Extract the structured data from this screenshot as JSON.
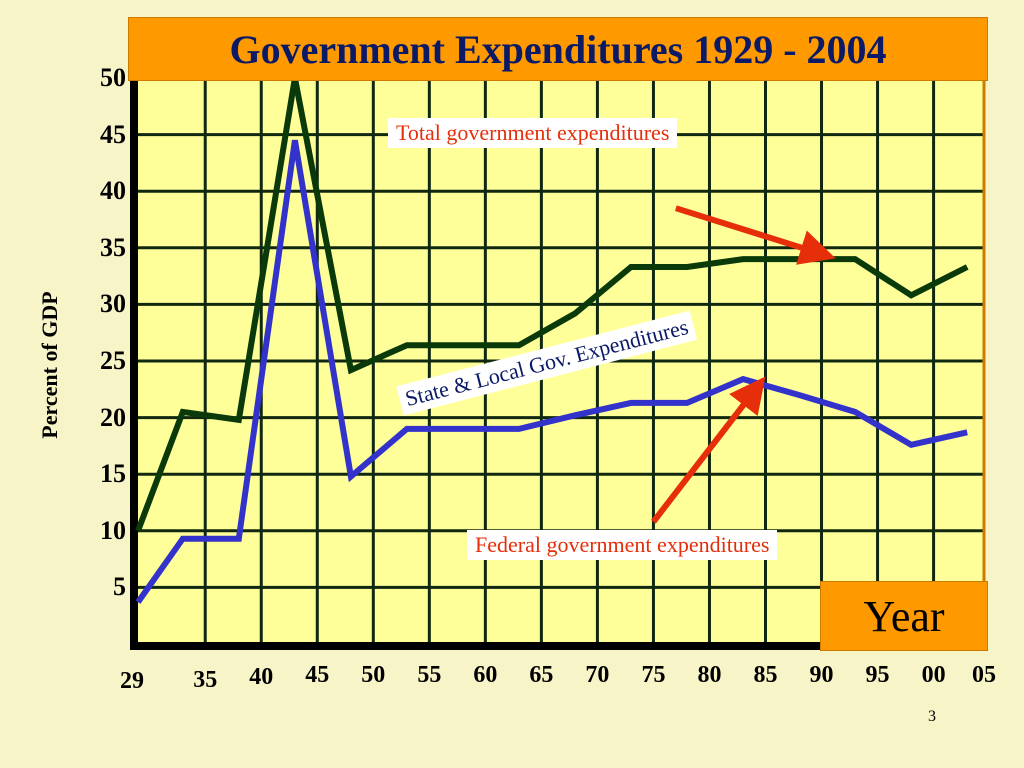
{
  "title": "Government Expenditures 1929 - 2004",
  "page_number": "3",
  "chart_data": {
    "type": "line",
    "title": "Government Expenditures 1929 - 2004",
    "xlabel": "Year",
    "ylabel": "Percent of GDP",
    "ylim": [
      0,
      50
    ],
    "grid": true,
    "y_ticks": [
      "5",
      "10",
      "15",
      "20",
      "25",
      "30",
      "35",
      "40",
      "45",
      "50"
    ],
    "x_ticks": [
      {
        "year": 1929,
        "label": "29"
      },
      {
        "year": 1935,
        "label": "35"
      },
      {
        "year": 1940,
        "label": "40"
      },
      {
        "year": 1945,
        "label": "45"
      },
      {
        "year": 1950,
        "label": "50"
      },
      {
        "year": 1955,
        "label": "55"
      },
      {
        "year": 1960,
        "label": "60"
      },
      {
        "year": 1965,
        "label": "65"
      },
      {
        "year": 1970,
        "label": "70"
      },
      {
        "year": 1975,
        "label": "75"
      },
      {
        "year": 1980,
        "label": "80"
      },
      {
        "year": 1985,
        "label": "85"
      },
      {
        "year": 1990,
        "label": "90"
      },
      {
        "year": 1995,
        "label": "95"
      },
      {
        "year": 2000,
        "label": "00"
      },
      {
        "year": 2005,
        "label": "05"
      }
    ],
    "series": [
      {
        "name": "Total government expenditures",
        "color": "#0a3a0a",
        "x": [
          1929,
          1933,
          1938,
          1943,
          1948,
          1953,
          1963,
          1968,
          1973,
          1978,
          1983,
          1988,
          1993,
          1998,
          2003
        ],
        "values": [
          10,
          20.5,
          19.8,
          50,
          24.2,
          26.4,
          26.4,
          29.2,
          33.3,
          33.3,
          34,
          34,
          34,
          30.8,
          33.3
        ]
      },
      {
        "name": "Federal  government expenditures",
        "color": "#3333cc",
        "x": [
          1929,
          1933,
          1938,
          1943,
          1948,
          1953,
          1963,
          1968,
          1973,
          1978,
          1983,
          1988,
          1993,
          1998,
          2003
        ],
        "values": [
          3.7,
          9.3,
          9.3,
          44.5,
          14.8,
          19,
          19,
          20.2,
          21.3,
          21.3,
          23.4,
          22,
          20.5,
          17.6,
          18.7
        ]
      }
    ],
    "annotations": {
      "total": "Total government expenditures",
      "federal": "Federal  government expenditures",
      "state_local": "State & Local Gov. Expenditures"
    },
    "annotation_color": "#e62e0a"
  }
}
